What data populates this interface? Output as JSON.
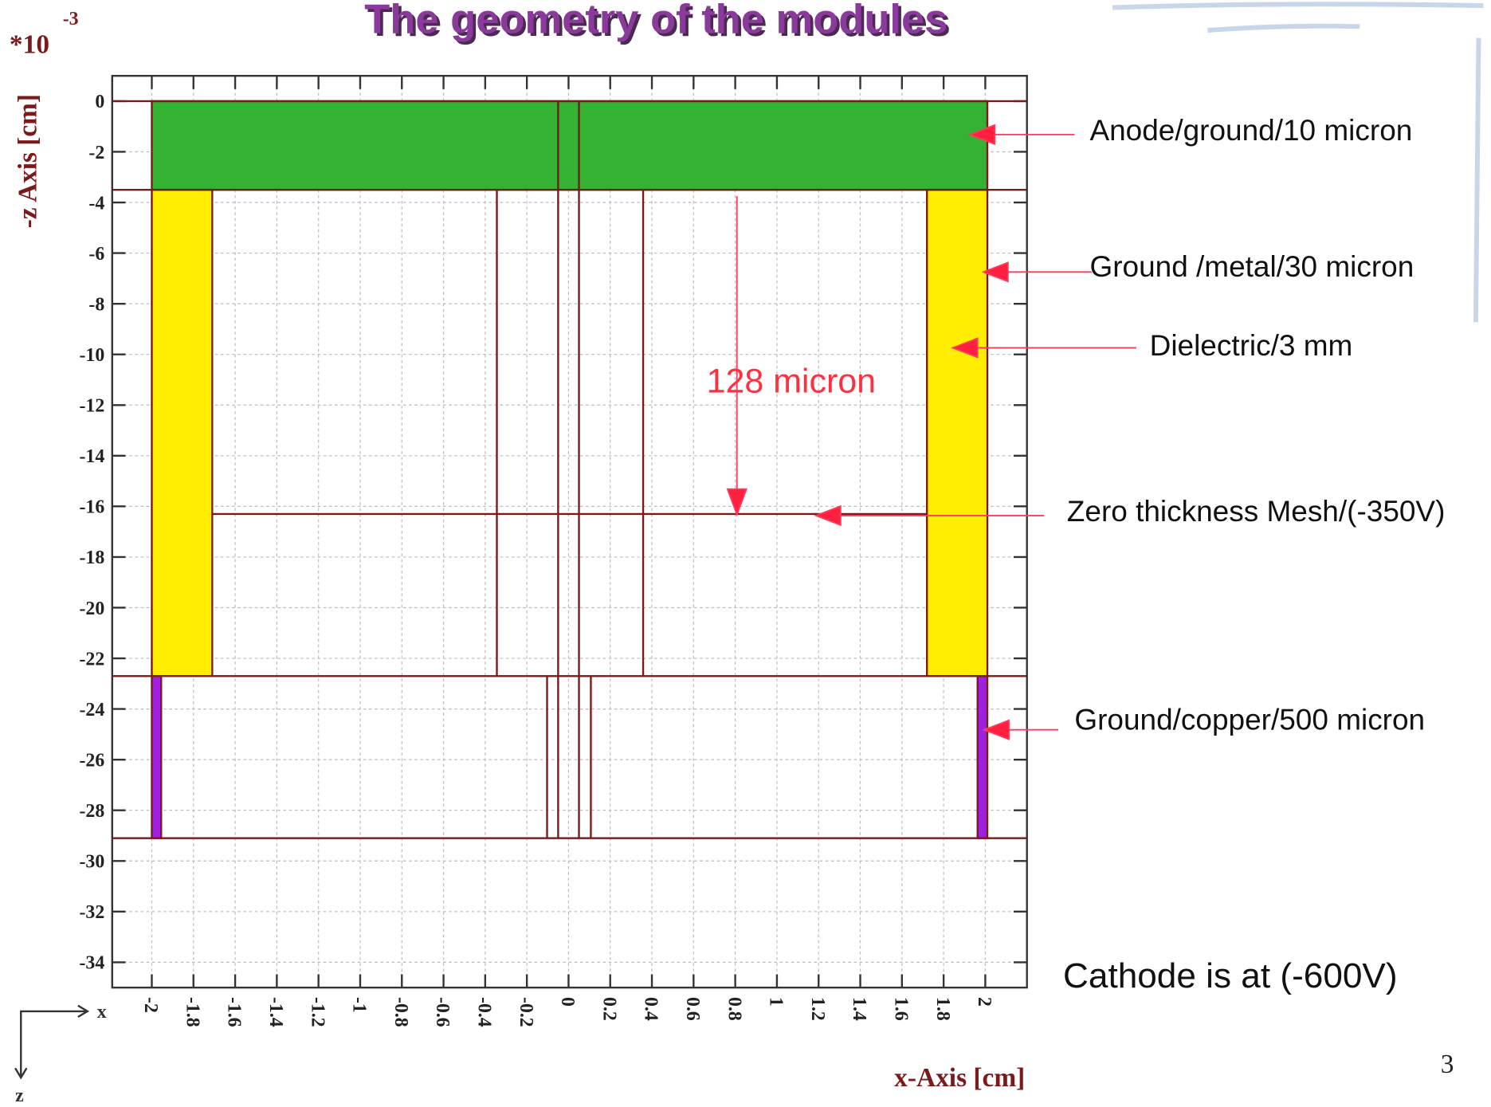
{
  "title": "The geometry of the modules",
  "page_number": "3",
  "chart_data": {
    "type": "geometry",
    "exponent_base": "*10",
    "exponent": "-3",
    "xlabel": "x-Axis [cm]",
    "ylabel": "-z Axis [cm]",
    "xlim": [
      -2.19,
      2.2
    ],
    "ylim": [
      -35,
      1
    ],
    "xticks": [
      -2,
      -1.8,
      -1.6,
      -1.4,
      -1.2,
      -1,
      -0.8,
      -0.6,
      -0.4,
      -0.2,
      0,
      0.2,
      0.4,
      0.6,
      0.8,
      1,
      1.2,
      1.4,
      1.6,
      1.8,
      2
    ],
    "yticks": [
      0,
      -2,
      -4,
      -6,
      -8,
      -10,
      -12,
      -14,
      -16,
      -18,
      -20,
      -22,
      -24,
      -26,
      -28,
      -30,
      -32,
      -34
    ],
    "grid": true,
    "outline_color": "#7a1a1a",
    "regions": [
      {
        "color": "#33b233",
        "x": [
          -2,
          2.01
        ],
        "y": [
          0,
          -3.5
        ]
      },
      {
        "color": "#ffee00",
        "x": [
          -2,
          -1.71
        ],
        "y": [
          -3.5,
          -22.7
        ]
      },
      {
        "color": "#ffee00",
        "x": [
          1.72,
          2.01
        ],
        "y": [
          -3.5,
          -22.7
        ]
      },
      {
        "color": "#a020e0",
        "x": [
          -2,
          -1.955
        ],
        "y": [
          -22.7,
          -29.1
        ]
      },
      {
        "color": "#a020e0",
        "x": [
          1.963,
          2.01
        ],
        "y": [
          -22.7,
          -29.1
        ]
      }
    ],
    "lines": [
      {
        "x": [
          -2.19,
          2.2
        ],
        "y": [
          0,
          0
        ]
      },
      {
        "x": [
          -2.19,
          2.2
        ],
        "y": [
          -3.5,
          -3.5
        ]
      },
      {
        "x": [
          -2.19,
          2.2
        ],
        "y": [
          -22.7,
          -22.7
        ]
      },
      {
        "x": [
          -2.19,
          2.2
        ],
        "y": [
          -29.1,
          -29.1
        ]
      },
      {
        "x": [
          -1.71,
          1.72
        ],
        "y": [
          -16.3,
          -16.3
        ]
      },
      {
        "x": [
          -0.05,
          -0.05
        ],
        "y": [
          0,
          -29.1
        ]
      },
      {
        "x": [
          0.05,
          0.05
        ],
        "y": [
          0,
          -29.1
        ]
      },
      {
        "x": [
          -0.344,
          -0.344
        ],
        "y": [
          -3.5,
          -22.7
        ]
      },
      {
        "x": [
          0.358,
          0.358
        ],
        "y": [
          -3.5,
          -22.7
        ]
      },
      {
        "x": [
          -0.103,
          -0.103
        ],
        "y": [
          -22.7,
          -29.1
        ]
      },
      {
        "x": [
          0.107,
          0.107
        ],
        "y": [
          -22.7,
          -29.1
        ]
      }
    ],
    "annotations": [
      "Anode/ground/10 micron",
      "Ground /metal/30 micron",
      "Dielectric/3 mm",
      "128 micron",
      "Zero thickness Mesh/(-350V)",
      "Ground/copper/500 micron",
      "Cathode is at (-600V)"
    ],
    "axis_icon": [
      "x",
      "z"
    ]
  }
}
